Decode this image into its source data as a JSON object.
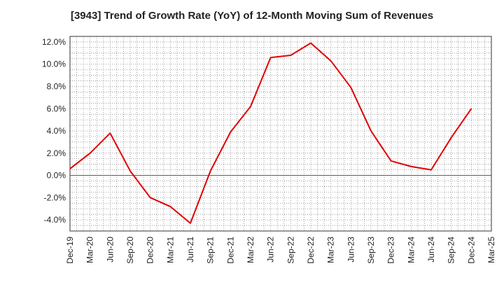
{
  "chart_data": {
    "type": "line",
    "title": "[3943]  Trend of Growth Rate (YoY) of 12-Month Moving Sum of Revenues",
    "xlabel": "",
    "ylabel": "",
    "x_ticks": [
      "Dec-19",
      "Mar-20",
      "Jun-20",
      "Sep-20",
      "Dec-20",
      "Mar-21",
      "Jun-21",
      "Sep-21",
      "Dec-21",
      "Mar-22",
      "Jun-22",
      "Sep-22",
      "Dec-22",
      "Mar-23",
      "Jun-23",
      "Sep-23",
      "Dec-23",
      "Mar-24",
      "Jun-24",
      "Sep-24",
      "Dec-24",
      "Mar-25"
    ],
    "y_ticks": [
      "12.0%",
      "10.0%",
      "8.0%",
      "6.0%",
      "4.0%",
      "2.0%",
      "0.0%",
      "-2.0%",
      "-4.0%"
    ],
    "y_tick_values": [
      12,
      10,
      8,
      6,
      4,
      2,
      0,
      -2,
      -4
    ],
    "ylim": [
      -5,
      12.5
    ],
    "grid": true,
    "series": [
      {
        "color": "#e00000",
        "x": [
          "Dec-19",
          "Mar-20",
          "Jun-20",
          "Sep-20",
          "Dec-20",
          "Mar-21",
          "Jun-21",
          "Sep-21",
          "Dec-21",
          "Mar-22",
          "Jun-22",
          "Sep-22",
          "Dec-22",
          "Mar-23",
          "Jun-23",
          "Sep-23",
          "Dec-23",
          "Mar-24",
          "Jun-24",
          "Sep-24",
          "Dec-24"
        ],
        "values": [
          0.6,
          2.0,
          3.8,
          0.4,
          -2.0,
          -2.8,
          -4.3,
          0.4,
          3.9,
          6.2,
          10.6,
          10.8,
          11.9,
          10.3,
          7.9,
          4.0,
          1.3,
          0.8,
          0.5,
          3.4,
          6.0
        ]
      }
    ]
  }
}
